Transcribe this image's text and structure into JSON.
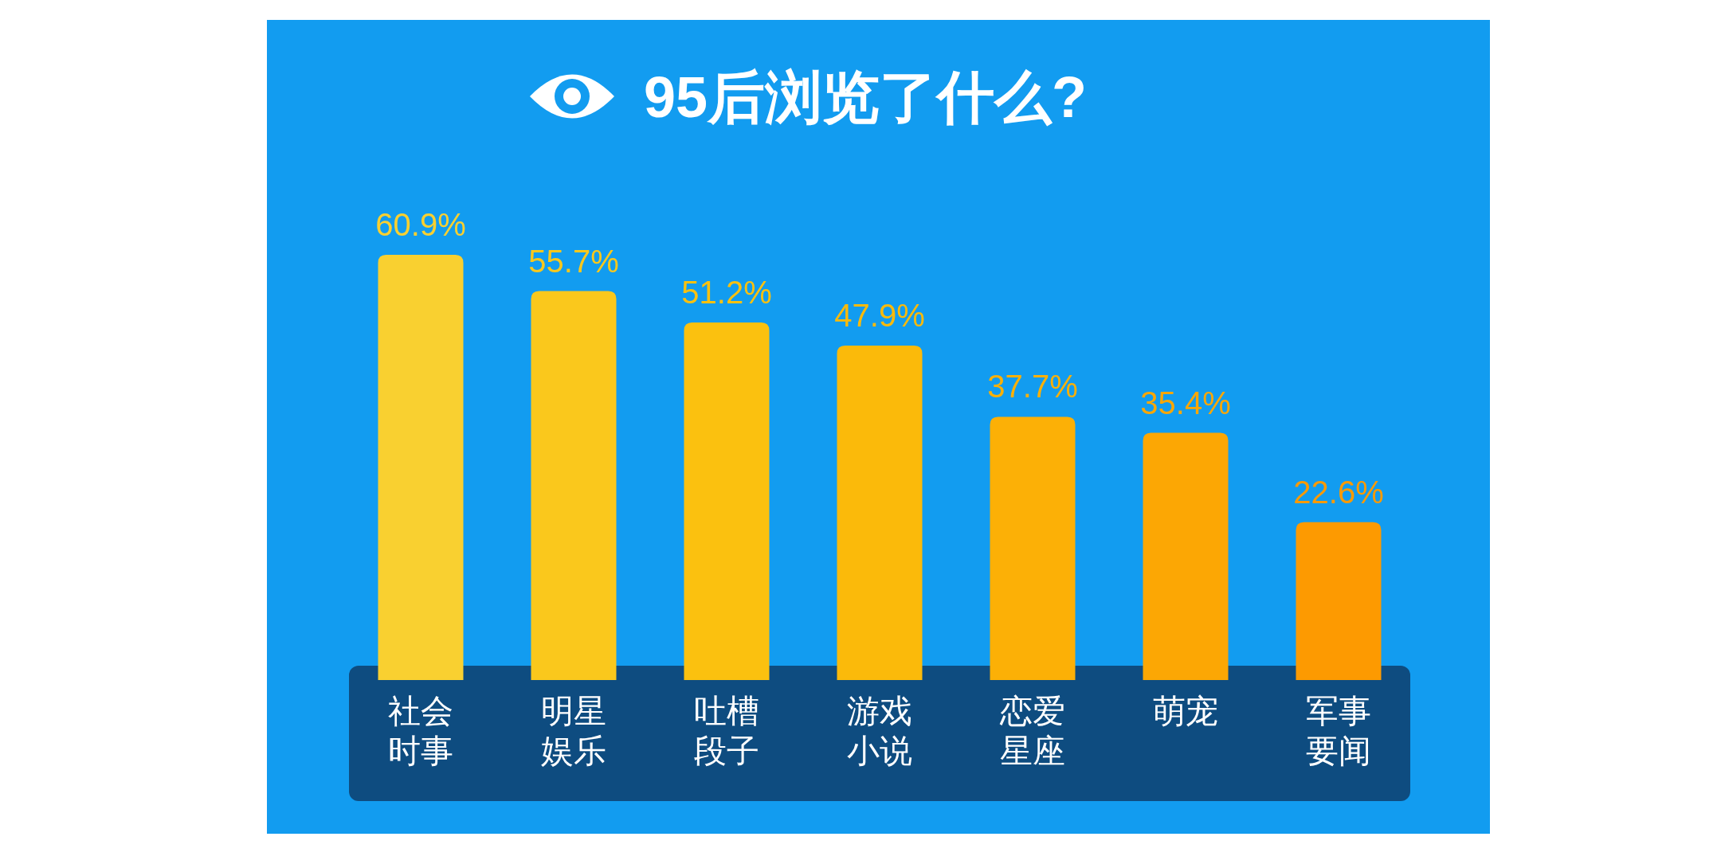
{
  "chart_data": {
    "type": "bar",
    "title": "95后浏览了什么?",
    "categories": [
      "社会时事",
      "明星娱乐",
      "吐槽段子",
      "游戏小说",
      "恋爱星座",
      "萌宠",
      "军事要闻"
    ],
    "values": [
      60.9,
      55.7,
      51.2,
      47.9,
      37.7,
      35.4,
      22.6
    ],
    "value_labels": [
      "60.9%",
      "55.7%",
      "51.2%",
      "47.9%",
      "37.7%",
      "35.4%",
      "22.6%"
    ],
    "colors": [
      "#f9d030",
      "#fac81c",
      "#fbc10f",
      "#fbba0a",
      "#fcb006",
      "#fca704",
      "#fd9a01"
    ],
    "data_labels": false
  }
}
